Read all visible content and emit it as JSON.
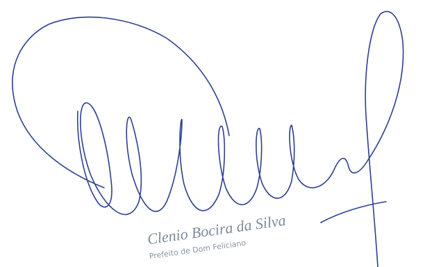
{
  "signature": {
    "name": "Clenio Bocira da Silva",
    "role": "Prefeito de Dom Feliciano"
  }
}
